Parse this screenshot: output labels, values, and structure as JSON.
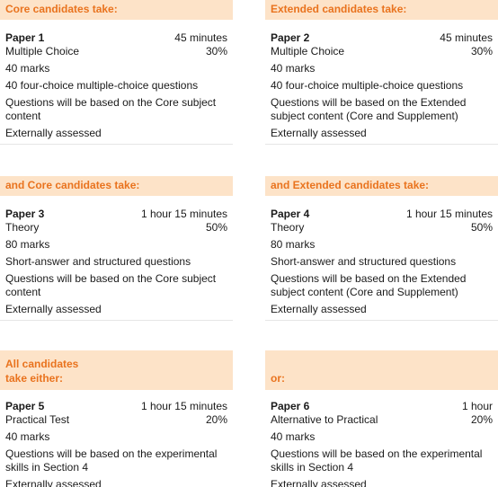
{
  "cards": [
    {
      "header": "Core candidates take:",
      "paper": "Paper 1",
      "duration": "45 minutes",
      "type": "Multiple Choice",
      "weight": "30%",
      "marks": "40 marks",
      "format": "40 four-choice multiple-choice questions",
      "content": "Questions will be based on the Core subject content",
      "assessment": "Externally assessed"
    },
    {
      "header": "Extended candidates take:",
      "paper": "Paper 2",
      "duration": "45 minutes",
      "type": "Multiple Choice",
      "weight": "30%",
      "marks": "40 marks",
      "format": "40 four-choice multiple-choice questions",
      "content": "Questions will be based on the Extended subject content (Core and Supplement)",
      "assessment": "Externally assessed"
    },
    {
      "header": "and Core candidates take:",
      "paper": "Paper 3",
      "duration": "1 hour 15 minutes",
      "type": "Theory",
      "weight": "50%",
      "marks": "80 marks",
      "format": "Short-answer and structured questions",
      "content": "Questions will be based on the Core subject content",
      "assessment": "Externally assessed"
    },
    {
      "header": "and Extended candidates take:",
      "paper": "Paper 4",
      "duration": "1 hour 15 minutes",
      "type": "Theory",
      "weight": "50%",
      "marks": "80 marks",
      "format": "Short-answer and structured questions",
      "content": "Questions will be based on the Extended subject content (Core and Supplement)",
      "assessment": "Externally assessed"
    },
    {
      "header": "All candidates take either:",
      "paper": "Paper 5",
      "duration": "1 hour 15 minutes",
      "type": "Practical Test",
      "weight": "20%",
      "marks": "40 marks",
      "content": "Questions will be based on the experimental skills in Section 4",
      "assessment": "Externally assessed"
    },
    {
      "header": "or:",
      "paper": "Paper 6",
      "duration": "1 hour",
      "type": "Alternative to Practical",
      "weight": "20%",
      "marks": "40 marks",
      "content": "Questions will be based on the experimental skills in Section 4",
      "assessment": "Externally assessed"
    }
  ]
}
